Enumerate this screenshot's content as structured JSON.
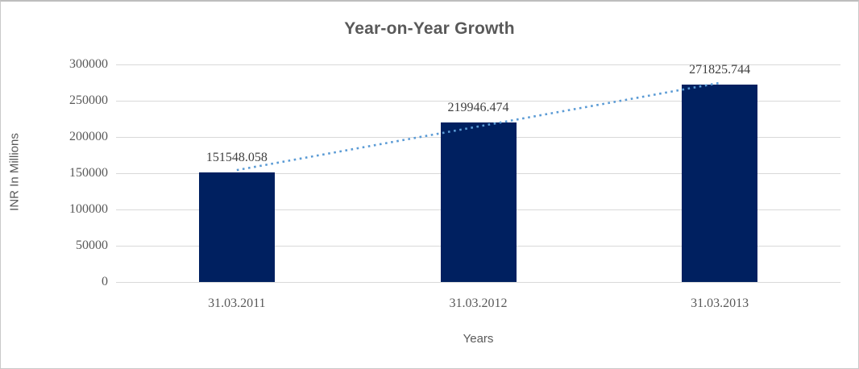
{
  "chart": {
    "background": "#ffffff",
    "border_color": "#c9c9c9"
  },
  "chart_data": {
    "type": "bar",
    "title": "Year-on-Year Growth",
    "xlabel": "Years",
    "ylabel": "INR In Millions",
    "categories": [
      "31.03.2011",
      "31.03.2012",
      "31.03.2013"
    ],
    "values": [
      151548.058,
      219946.474,
      271825.744
    ],
    "data_labels": [
      "151548.058",
      "219946.474",
      "271825.744"
    ],
    "ylim": [
      0,
      300000
    ],
    "yticks": [
      0,
      50000,
      100000,
      150000,
      200000,
      250000,
      300000
    ],
    "ytick_labels": [
      "0",
      "50000",
      "100000",
      "150000",
      "200000",
      "250000",
      "300000"
    ],
    "grid": true,
    "legend": "none",
    "bar_color": "#002060",
    "gridline_color": "#d9d9d9",
    "text_color": "#595959",
    "data_label_color": "#3f3f3f",
    "trendline": {
      "type": "linear",
      "line_style": "dotted",
      "color": "#5b9bd5"
    }
  }
}
